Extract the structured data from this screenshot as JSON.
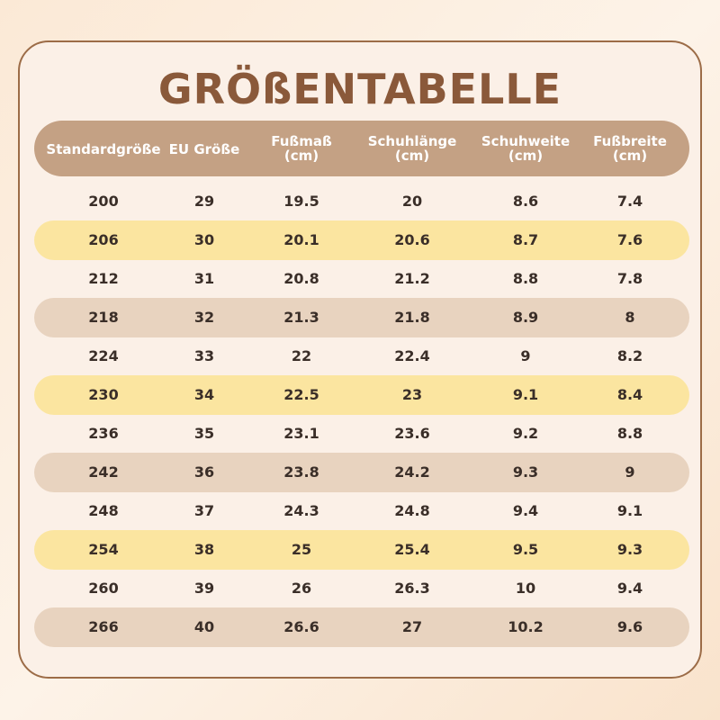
{
  "title": "GRÖßENTABELLE",
  "table": {
    "header": [
      "Standardgröße",
      "EU Größe",
      "Fußmaß\n(cm)",
      "Schuhlänge\n(cm)",
      "Schuhweite\n(cm)",
      "Fußbreite\n(cm)"
    ],
    "rows": [
      [
        "200",
        "29",
        "19.5",
        "20",
        "8.6",
        "7.4"
      ],
      [
        "206",
        "30",
        "20.1",
        "20.6",
        "8.7",
        "7.6"
      ],
      [
        "212",
        "31",
        "20.8",
        "21.2",
        "8.8",
        "7.8"
      ],
      [
        "218",
        "32",
        "21.3",
        "21.8",
        "8.9",
        "8"
      ],
      [
        "224",
        "33",
        "22",
        "22.4",
        "9",
        "8.2"
      ],
      [
        "230",
        "34",
        "22.5",
        "23",
        "9.1",
        "8.4"
      ],
      [
        "236",
        "35",
        "23.1",
        "23.6",
        "9.2",
        "8.8"
      ],
      [
        "242",
        "36",
        "23.8",
        "24.2",
        "9.3",
        "9"
      ],
      [
        "248",
        "37",
        "24.3",
        "24.8",
        "9.4",
        "9.1"
      ],
      [
        "254",
        "38",
        "25",
        "25.4",
        "9.5",
        "9.3"
      ],
      [
        "260",
        "39",
        "26",
        "26.3",
        "10",
        "9.4"
      ],
      [
        "266",
        "40",
        "26.6",
        "27",
        "10.2",
        "9.6"
      ]
    ]
  }
}
